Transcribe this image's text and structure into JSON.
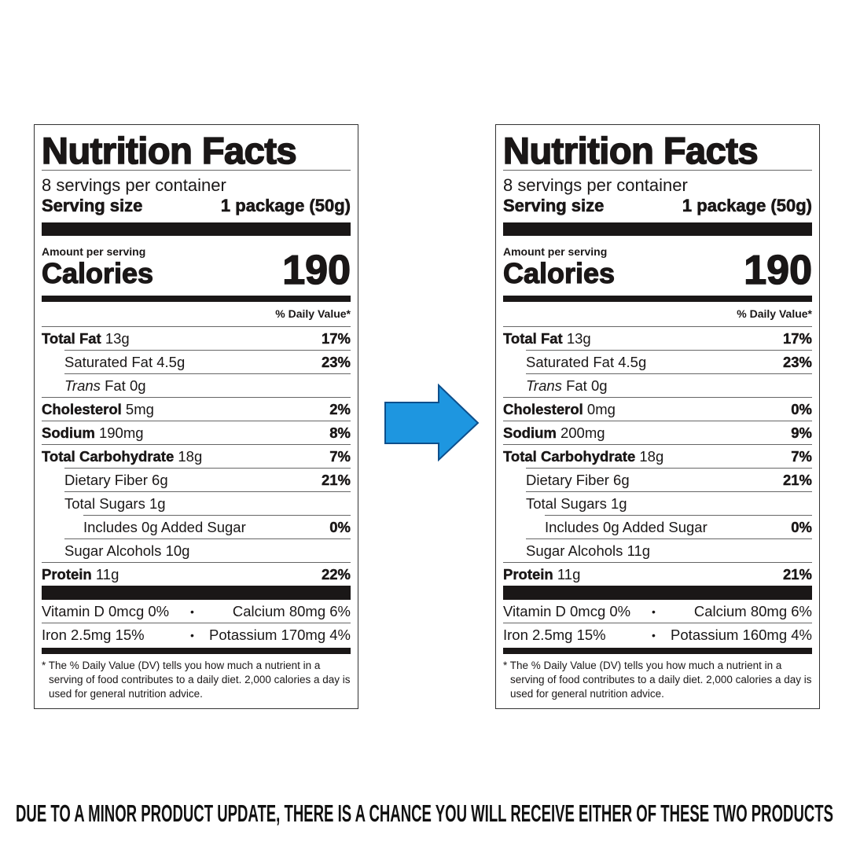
{
  "labels": [
    {
      "title": "Nutrition Facts",
      "servings": "8 servings per container",
      "serving_size_label": "Serving size",
      "serving_size_value": "1 package (50g)",
      "amount_per_serving": "Amount per serving",
      "calories_label": "Calories",
      "calories_value": "190",
      "daily_value_header": "% Daily Value*",
      "rows": [
        {
          "label": "Total Fat",
          "amount": "13g",
          "dv": "17%"
        },
        {
          "label": "Saturated Fat",
          "amount": "4.5g",
          "dv": "23%"
        },
        {
          "label_italic": "Trans",
          "label": "Fat",
          "amount": "0g",
          "dv": ""
        },
        {
          "label": "Cholesterol",
          "amount": "5mg",
          "dv": "2%"
        },
        {
          "label": "Sodium",
          "amount": "190mg",
          "dv": "8%"
        },
        {
          "label": "Total Carbohydrate",
          "amount": "18g",
          "dv": "7%"
        },
        {
          "label": "Dietary Fiber",
          "amount": "6g",
          "dv": "21%"
        },
        {
          "label": "Total Sugars",
          "amount": "1g",
          "dv": ""
        },
        {
          "label": "Includes 0g Added Sugar",
          "amount": "",
          "dv": "0%"
        },
        {
          "label": "Sugar Alcohols",
          "amount": "10g",
          "dv": ""
        },
        {
          "label": "Protein",
          "amount": "11g",
          "dv": "22%"
        }
      ],
      "micros": [
        {
          "left": "Vitamin D 0mcg 0%",
          "right": "Calcium 80mg 6%"
        },
        {
          "left": "Iron 2.5mg 15%",
          "right": "Potassium 170mg 4%"
        }
      ],
      "footnote": "* The % Daily Value (DV) tells you how much a nutrient in a serving of food contributes to a daily diet. 2,000 calories a day is used for general nutrition advice."
    },
    {
      "title": "Nutrition Facts",
      "servings": "8 servings per container",
      "serving_size_label": "Serving size",
      "serving_size_value": "1 package (50g)",
      "amount_per_serving": "Amount per serving",
      "calories_label": "Calories",
      "calories_value": "190",
      "daily_value_header": "% Daily Value*",
      "rows": [
        {
          "label": "Total Fat",
          "amount": "13g",
          "dv": "17%"
        },
        {
          "label": "Saturated Fat",
          "amount": "4.5g",
          "dv": "23%"
        },
        {
          "label_italic": "Trans",
          "label": "Fat",
          "amount": "0g",
          "dv": ""
        },
        {
          "label": "Cholesterol",
          "amount": "0mg",
          "dv": "0%"
        },
        {
          "label": "Sodium",
          "amount": "200mg",
          "dv": "9%"
        },
        {
          "label": "Total Carbohydrate",
          "amount": "18g",
          "dv": "7%"
        },
        {
          "label": "Dietary Fiber",
          "amount": "6g",
          "dv": "21%"
        },
        {
          "label": "Total Sugars",
          "amount": "1g",
          "dv": ""
        },
        {
          "label": "Includes 0g Added Sugar",
          "amount": "",
          "dv": "0%"
        },
        {
          "label": "Sugar Alcohols",
          "amount": "11g",
          "dv": ""
        },
        {
          "label": "Protein",
          "amount": "11g",
          "dv": "21%"
        }
      ],
      "micros": [
        {
          "left": "Vitamin D 0mcg 0%",
          "right": "Calcium 80mg 6%"
        },
        {
          "left": "Iron 2.5mg 15%",
          "right": "Potassium 160mg 4%"
        }
      ],
      "footnote": "* The % Daily Value (DV) tells you how much a nutrient in a serving of food contributes to a daily diet. 2,000 calories a day is used for general nutrition advice."
    }
  ],
  "arrow": {
    "icon": "arrow-right-icon",
    "fill": "#1e96e0",
    "stroke": "#0d4f8c"
  },
  "notice": "DUE TO A MINOR PRODUCT UPDATE, THERE IS A CHANCE YOU WILL RECEIVE EITHER OF THESE TWO PRODUCTS"
}
